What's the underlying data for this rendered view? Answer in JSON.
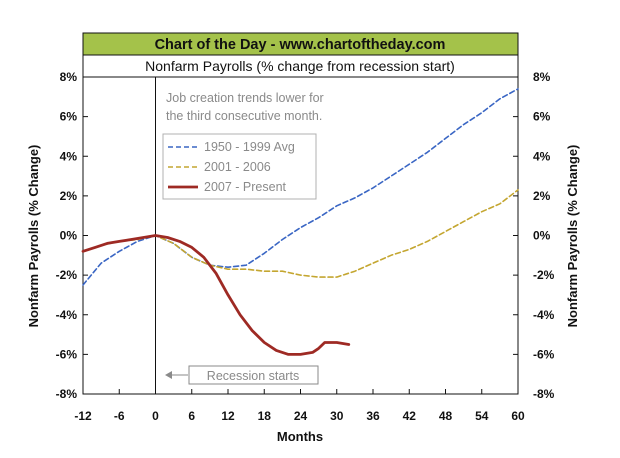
{
  "chart_data": {
    "type": "line",
    "banner": "Chart of the Day - www.chartoftheday.com",
    "title": "Nonfarm Payrolls (% change from recession start)",
    "xlabel": "Months",
    "ylabel_left": "Nonfarm Payrolls (% Change)",
    "ylabel_right": "Nonfarm Payrolls (% Change)",
    "xlim": [
      -12,
      60
    ],
    "ylim": [
      -8,
      8
    ],
    "x_ticks": [
      -12,
      -6,
      0,
      6,
      12,
      18,
      24,
      30,
      36,
      42,
      48,
      54,
      60
    ],
    "x_tick_labels": [
      "-12",
      "-6",
      "0",
      "6",
      "12",
      "18",
      "24",
      "30",
      "36",
      "42",
      "48",
      "54",
      "60"
    ],
    "y_ticks": [
      8,
      6,
      4,
      2,
      0,
      -2,
      -4,
      -6,
      -8
    ],
    "y_tick_labels": [
      "8%",
      "6%",
      "4%",
      "2%",
      "0%",
      "-2%",
      "-4%",
      "-6%",
      "-8%"
    ],
    "annotation_note": [
      "Job creation trends lower for",
      "the third consecutive month."
    ],
    "annotation_recession": "Recession starts",
    "recession_line_x": 0,
    "legend_position": "upper-left",
    "grid": false,
    "series": [
      {
        "name": "1950 - 1999 Avg",
        "color": "#3a66c4",
        "style": "dashed",
        "x": [
          -12,
          -9,
          -6,
          -3,
          0,
          3,
          6,
          9,
          12,
          15,
          18,
          21,
          24,
          27,
          30,
          33,
          36,
          39,
          42,
          45,
          48,
          51,
          54,
          57,
          60
        ],
        "y": [
          -2.5,
          -1.4,
          -0.8,
          -0.3,
          0.0,
          -0.4,
          -1.1,
          -1.5,
          -1.6,
          -1.5,
          -0.9,
          -0.2,
          0.4,
          0.9,
          1.5,
          1.9,
          2.4,
          3.0,
          3.6,
          4.2,
          4.9,
          5.6,
          6.2,
          6.9,
          7.4
        ]
      },
      {
        "name": "2001 - 2006",
        "color": "#c4a630",
        "style": "dashed",
        "x": [
          -12,
          -9,
          -6,
          -3,
          0,
          3,
          6,
          9,
          12,
          15,
          18,
          21,
          24,
          27,
          30,
          33,
          36,
          39,
          42,
          45,
          48,
          51,
          54,
          57,
          60
        ],
        "y": [
          -0.8,
          -0.5,
          -0.3,
          -0.2,
          0.0,
          -0.4,
          -1.1,
          -1.5,
          -1.7,
          -1.7,
          -1.8,
          -1.8,
          -2.0,
          -2.1,
          -2.1,
          -1.8,
          -1.4,
          -1.0,
          -0.7,
          -0.3,
          0.2,
          0.7,
          1.2,
          1.6,
          2.3
        ]
      },
      {
        "name": "2007 - Present",
        "color": "#9e2a24",
        "style": "solid",
        "x": [
          -12,
          -10,
          -8,
          -6,
          -4,
          -2,
          0,
          2,
          4,
          6,
          8,
          10,
          12,
          14,
          16,
          18,
          20,
          22,
          24,
          26,
          27,
          28,
          30,
          32
        ],
        "y": [
          -0.8,
          -0.6,
          -0.4,
          -0.3,
          -0.2,
          -0.1,
          0.0,
          -0.1,
          -0.3,
          -0.6,
          -1.1,
          -1.9,
          -3.0,
          -4.0,
          -4.8,
          -5.4,
          -5.8,
          -6.0,
          -6.0,
          -5.9,
          -5.7,
          -5.4,
          -5.4,
          -5.5
        ]
      }
    ]
  }
}
